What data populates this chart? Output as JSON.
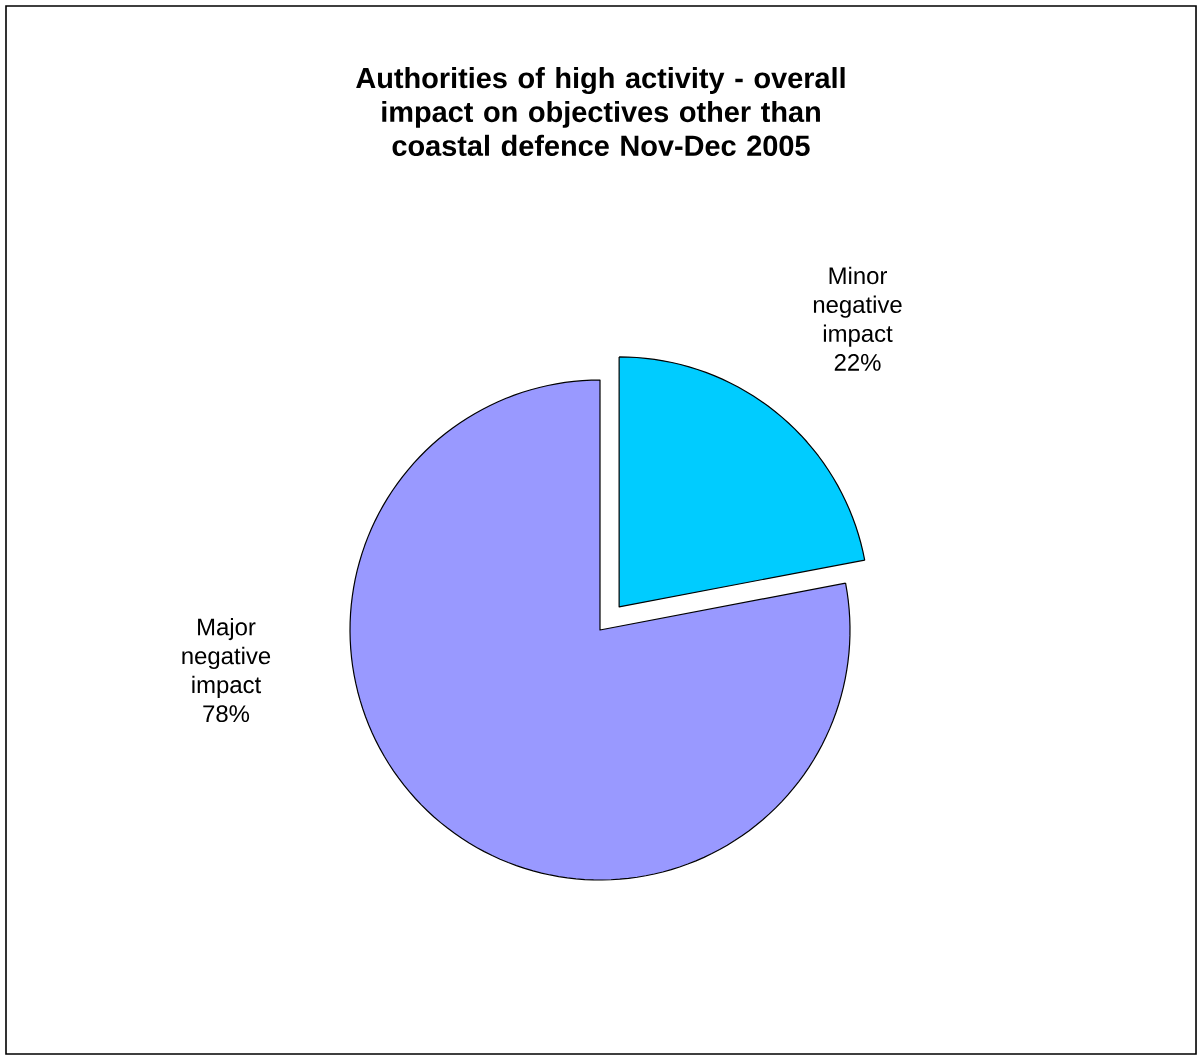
{
  "chart_data": {
    "type": "pie",
    "title": "Authorities of high activity - overall impact on objectives other than coastal defence Nov-Dec 2005",
    "categories": [
      "Minor negative impact",
      "Major negative impact"
    ],
    "values": [
      22,
      78
    ],
    "colors": [
      "#00ccff",
      "#9999ff"
    ],
    "value_labels": [
      "22%",
      "78%"
    ]
  }
}
